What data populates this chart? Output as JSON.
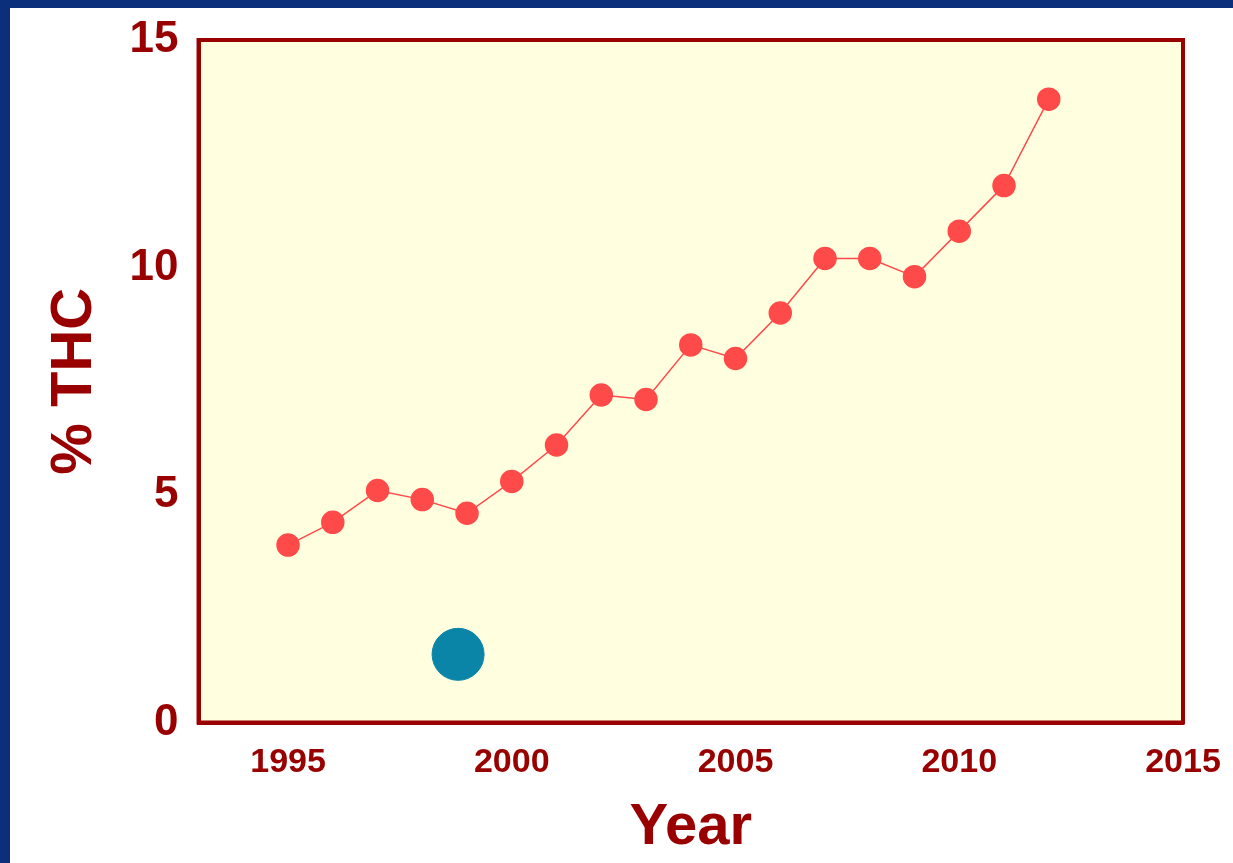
{
  "chart_data": {
    "type": "line",
    "xlabel": "Year",
    "ylabel": "% THC",
    "xlim": [
      1993,
      2015
    ],
    "xticks": [
      1995,
      2000,
      2005,
      2010,
      2015
    ],
    "ylim": [
      0,
      15
    ],
    "yticks": [
      0,
      5,
      10,
      15
    ],
    "grid": false,
    "legend": false,
    "marker": "circle",
    "line_style": "solid",
    "x": [
      1995,
      1996,
      1997,
      1998,
      1999,
      2000,
      2001,
      2002,
      2003,
      2004,
      2005,
      2006,
      2007,
      2008,
      2009,
      2010,
      2011,
      2012
    ],
    "series": [
      {
        "color": "#ff4a4a",
        "values": [
          3.9,
          4.4,
          5.1,
          4.9,
          4.6,
          5.3,
          6.1,
          7.2,
          7.1,
          8.3,
          8.0,
          9.0,
          10.2,
          10.2,
          9.8,
          10.8,
          11.8,
          13.7
        ]
      },
      {
        "type": "scatter",
        "color": "#0a85a8",
        "x": [
          1998.8
        ],
        "values": [
          1.5
        ]
      }
    ]
  }
}
